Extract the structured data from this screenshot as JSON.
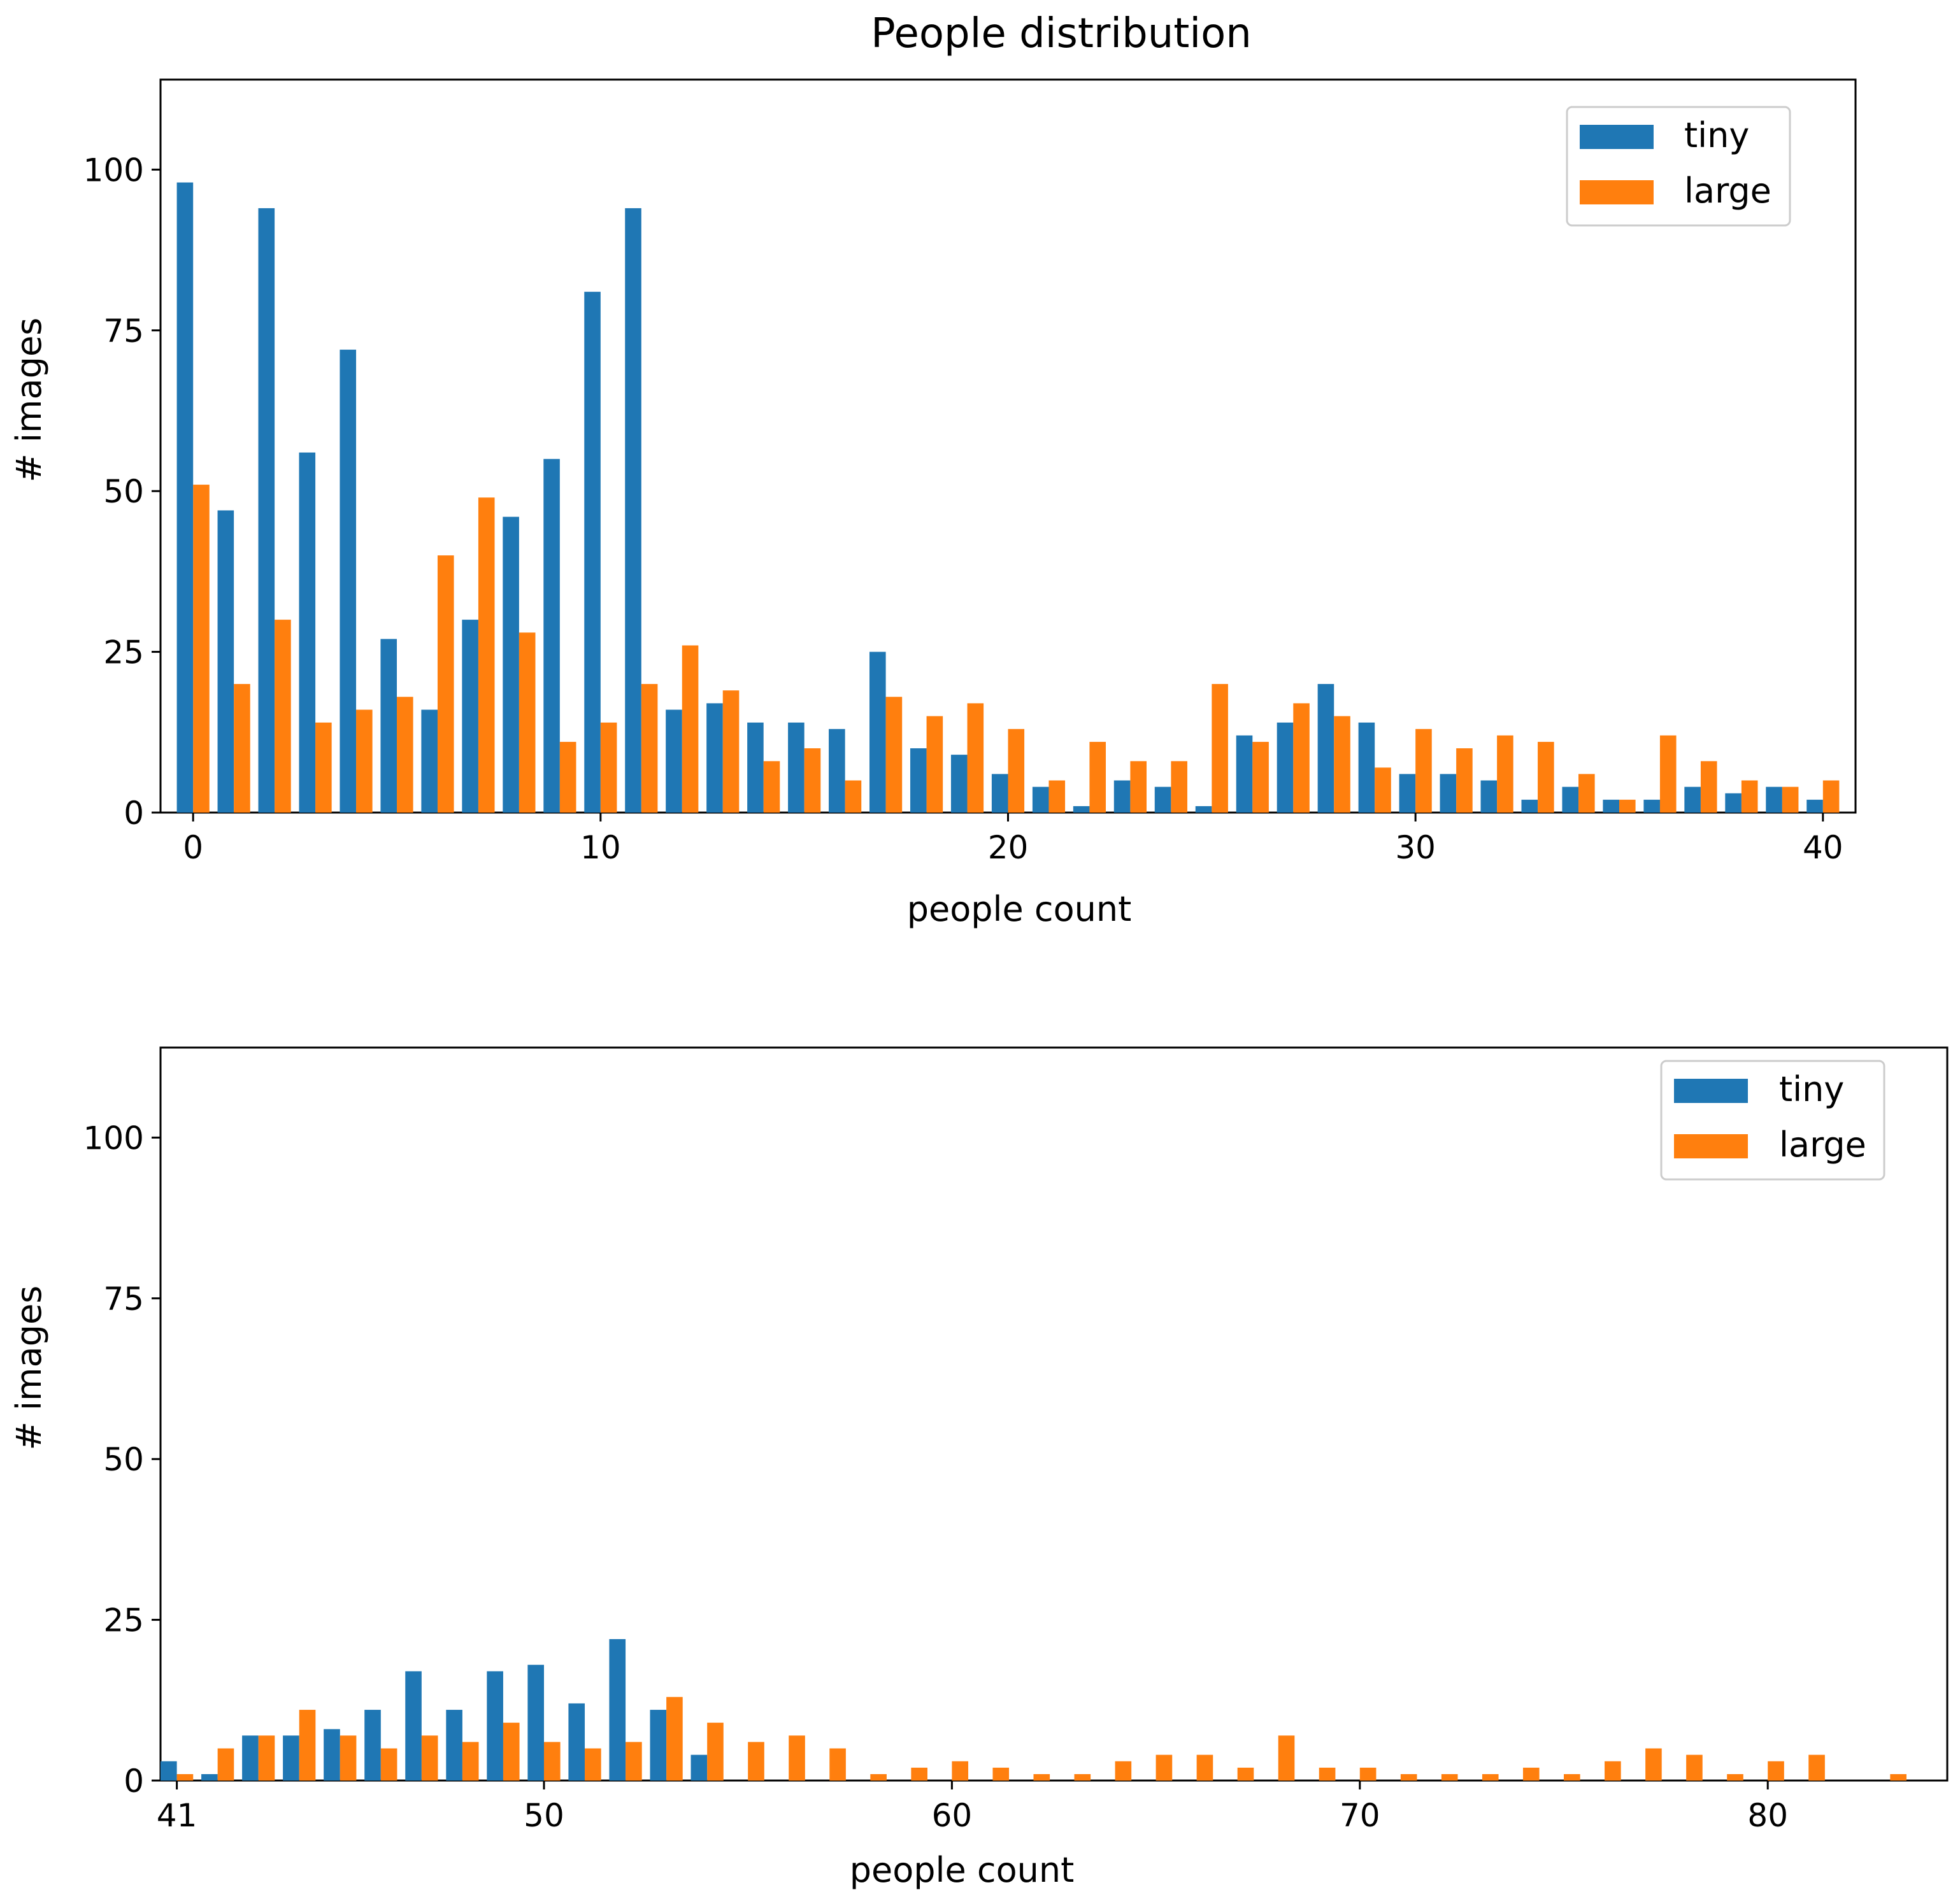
{
  "chart_data": [
    {
      "type": "bar",
      "title": "People distribution",
      "xlabel": "people count",
      "ylabel": "# images",
      "ylim": [
        0,
        114
      ],
      "xlim": [
        -0.8,
        40.8
      ],
      "xticks": [
        0,
        10,
        20,
        30,
        40
      ],
      "yticks": [
        0,
        25,
        50,
        75,
        100
      ],
      "legend_position": "upper right",
      "colors": {
        "tiny": "#1f77b4",
        "large": "#ff7f0e"
      },
      "x": [
        0,
        1,
        2,
        3,
        4,
        5,
        6,
        7,
        8,
        9,
        10,
        11,
        12,
        13,
        14,
        15,
        16,
        17,
        18,
        19,
        20,
        21,
        22,
        23,
        24,
        25,
        26,
        27,
        28,
        29,
        30,
        31,
        32,
        33,
        34,
        35,
        36,
        37,
        38,
        39,
        40
      ],
      "series": [
        {
          "name": "tiny",
          "values": [
            98,
            47,
            94,
            56,
            72,
            27,
            16,
            30,
            46,
            55,
            81,
            94,
            16,
            17,
            14,
            14,
            13,
            25,
            10,
            9,
            6,
            4,
            1,
            5,
            4,
            1,
            12,
            14,
            20,
            14,
            6,
            6,
            5,
            2,
            4,
            2,
            2,
            4,
            3,
            4,
            2
          ]
        },
        {
          "name": "large",
          "values": [
            51,
            20,
            30,
            14,
            16,
            18,
            40,
            49,
            28,
            11,
            14,
            20,
            26,
            19,
            8,
            10,
            5,
            18,
            15,
            17,
            13,
            5,
            11,
            8,
            8,
            20,
            11,
            17,
            15,
            7,
            13,
            10,
            12,
            11,
            6,
            2,
            12,
            8,
            5,
            4,
            5
          ]
        }
      ]
    },
    {
      "type": "bar",
      "title": "",
      "xlabel": "people count",
      "ylabel": "# images",
      "ylim": [
        0,
        114
      ],
      "xlim": [
        40.6,
        84.4
      ],
      "xticks": [
        41,
        50,
        60,
        70,
        80
      ],
      "yticks": [
        0,
        25,
        50,
        75,
        100
      ],
      "legend_position": "upper right",
      "colors": {
        "tiny": "#1f77b4",
        "large": "#ff7f0e"
      },
      "x": [
        41,
        42,
        43,
        44,
        45,
        46,
        47,
        48,
        49,
        50,
        51,
        52,
        53,
        54,
        55,
        56,
        57,
        58,
        59,
        60,
        61,
        62,
        63,
        64,
        65,
        66,
        67,
        68,
        69,
        70,
        71,
        72,
        73,
        74,
        75,
        76,
        77,
        78,
        79,
        80,
        81,
        82,
        83,
        84
      ],
      "series": [
        {
          "name": "tiny",
          "values": [
            3,
            1,
            7,
            7,
            8,
            11,
            17,
            11,
            17,
            18,
            12,
            22,
            11,
            4,
            0,
            0,
            0,
            0,
            0,
            0,
            0,
            0,
            0,
            0,
            0,
            0,
            0,
            0,
            0,
            0,
            0,
            0,
            0,
            0,
            0,
            0,
            0,
            0,
            0,
            0,
            0,
            0,
            0,
            0
          ]
        },
        {
          "name": "large",
          "values": [
            1,
            5,
            7,
            11,
            7,
            5,
            7,
            6,
            9,
            6,
            5,
            6,
            13,
            9,
            6,
            7,
            5,
            1,
            2,
            3,
            2,
            1,
            1,
            3,
            4,
            4,
            2,
            7,
            2,
            2,
            1,
            1,
            1,
            2,
            1,
            3,
            5,
            4,
            1,
            3,
            4,
            0,
            1,
            0
          ]
        }
      ]
    }
  ]
}
